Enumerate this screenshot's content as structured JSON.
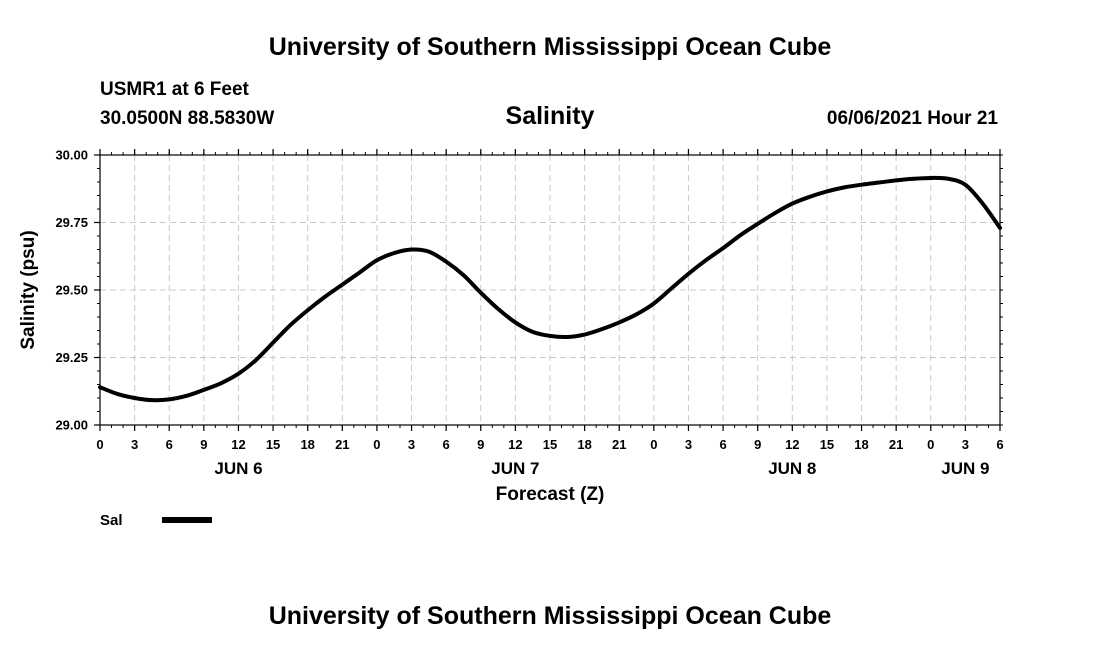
{
  "header": {
    "title": "University of Southern Mississippi Ocean Cube",
    "station": "USMR1 at 6 Feet",
    "coords": "30.0500N  88.5830W",
    "variable": "Salinity",
    "datetime": "06/06/2021 Hour 21"
  },
  "footer": {
    "title": "University of Southern Mississippi Ocean Cube"
  },
  "legend": {
    "label": "Sal"
  },
  "chart_data": {
    "type": "line",
    "title": "Salinity",
    "xlabel": "Forecast (Z)",
    "ylabel": "Salinity (psu)",
    "ylim": [
      29.0,
      30.0
    ],
    "yticks": [
      29.0,
      29.25,
      29.5,
      29.75,
      30.0
    ],
    "ytick_labels": [
      "29.00",
      "29.25",
      "29.50",
      "29.75",
      "30.00"
    ],
    "xlim": [
      0,
      78
    ],
    "xticks": [
      0,
      3,
      6,
      9,
      12,
      15,
      18,
      21,
      24,
      27,
      30,
      33,
      36,
      39,
      42,
      45,
      48,
      51,
      54,
      57,
      60,
      63,
      66,
      69,
      72,
      75,
      78
    ],
    "xtick_labels": [
      "0",
      "3",
      "6",
      "9",
      "12",
      "15",
      "18",
      "21",
      "0",
      "3",
      "6",
      "9",
      "12",
      "15",
      "18",
      "21",
      "0",
      "3",
      "6",
      "9",
      "12",
      "15",
      "18",
      "21",
      "0",
      "3",
      "6"
    ],
    "day_labels": [
      {
        "label": "JUN 6",
        "x": 12
      },
      {
        "label": "JUN 7",
        "x": 36
      },
      {
        "label": "JUN 8",
        "x": 60
      },
      {
        "label": "JUN 9",
        "x": 75
      }
    ],
    "grid": true,
    "legend": "bottom-left",
    "series": [
      {
        "name": "Sal",
        "x": [
          0,
          1.5,
          3,
          4.5,
          6,
          7.5,
          9,
          10.5,
          12,
          13.5,
          15,
          16.5,
          18,
          19.5,
          21,
          22.5,
          24,
          25.5,
          27,
          28.5,
          30,
          31.5,
          33,
          34.5,
          36,
          37.5,
          39,
          40.5,
          42,
          43.5,
          45,
          46.5,
          48,
          49.5,
          51,
          52.5,
          54,
          55.5,
          57,
          58.5,
          60,
          61.5,
          63,
          64.5,
          66,
          67.5,
          69,
          70.5,
          72,
          73.5,
          75,
          76.5,
          78
        ],
        "values": [
          29.14,
          29.115,
          29.1,
          29.092,
          29.095,
          29.108,
          29.13,
          29.155,
          29.19,
          29.24,
          29.305,
          29.37,
          29.425,
          29.475,
          29.52,
          29.565,
          29.61,
          29.637,
          29.65,
          29.642,
          29.605,
          29.555,
          29.49,
          29.43,
          29.38,
          29.345,
          29.33,
          29.326,
          29.335,
          29.355,
          29.38,
          29.41,
          29.45,
          29.505,
          29.56,
          29.61,
          29.655,
          29.703,
          29.745,
          29.785,
          29.82,
          29.845,
          29.865,
          29.88,
          29.89,
          29.898,
          29.906,
          29.912,
          29.915,
          29.912,
          29.89,
          29.82,
          29.73
        ]
      }
    ]
  }
}
